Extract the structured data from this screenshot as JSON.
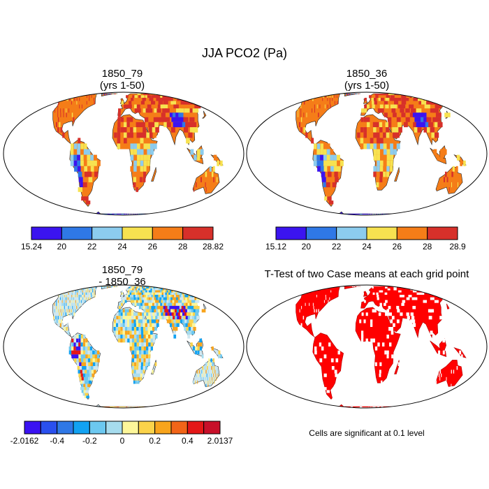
{
  "main_title": "JJA PCO2 (Pa)",
  "panels": [
    {
      "id": "p1",
      "title_lines": [
        "1850_79",
        "(yrs 1-50)"
      ],
      "kind": "field",
      "colorbar": {
        "colors": [
          "#3b14f0",
          "#2f78e6",
          "#8cccee",
          "#f7e250",
          "#f57d18",
          "#d7302a"
        ],
        "labels": [
          "15.24",
          "20",
          "22",
          "24",
          "26",
          "28",
          "28.82"
        ]
      }
    },
    {
      "id": "p2",
      "title_lines": [
        "1850_36",
        "(yrs 1-50)"
      ],
      "kind": "field",
      "colorbar": {
        "colors": [
          "#3b14f0",
          "#2f78e6",
          "#8cccee",
          "#f7e250",
          "#f57d18",
          "#d7302a"
        ],
        "labels": [
          "15.12",
          "20",
          "22",
          "24",
          "26",
          "28",
          "28.9"
        ]
      }
    },
    {
      "id": "p3",
      "title_lines": [
        "1850_79",
        "- 1850_36"
      ],
      "kind": "difference",
      "colorbar": {
        "colors": [
          "#3a12f2",
          "#2a50ee",
          "#2f78e6",
          "#12a2f2",
          "#6cc8f0",
          "#a6dcee",
          "#fdf79a",
          "#fbd34a",
          "#f8a41c",
          "#f26518",
          "#e41818",
          "#c8102a"
        ],
        "labels": [
          "-2.0162",
          "-0.4",
          "-0.2",
          "0",
          "0.2",
          "0.4",
          "2.0137"
        ]
      }
    },
    {
      "id": "p4",
      "title_lines": [
        "T-Test of two Case means at each grid point"
      ],
      "kind": "ttest",
      "note": "Cells are significant at 0.1 level"
    }
  ]
}
